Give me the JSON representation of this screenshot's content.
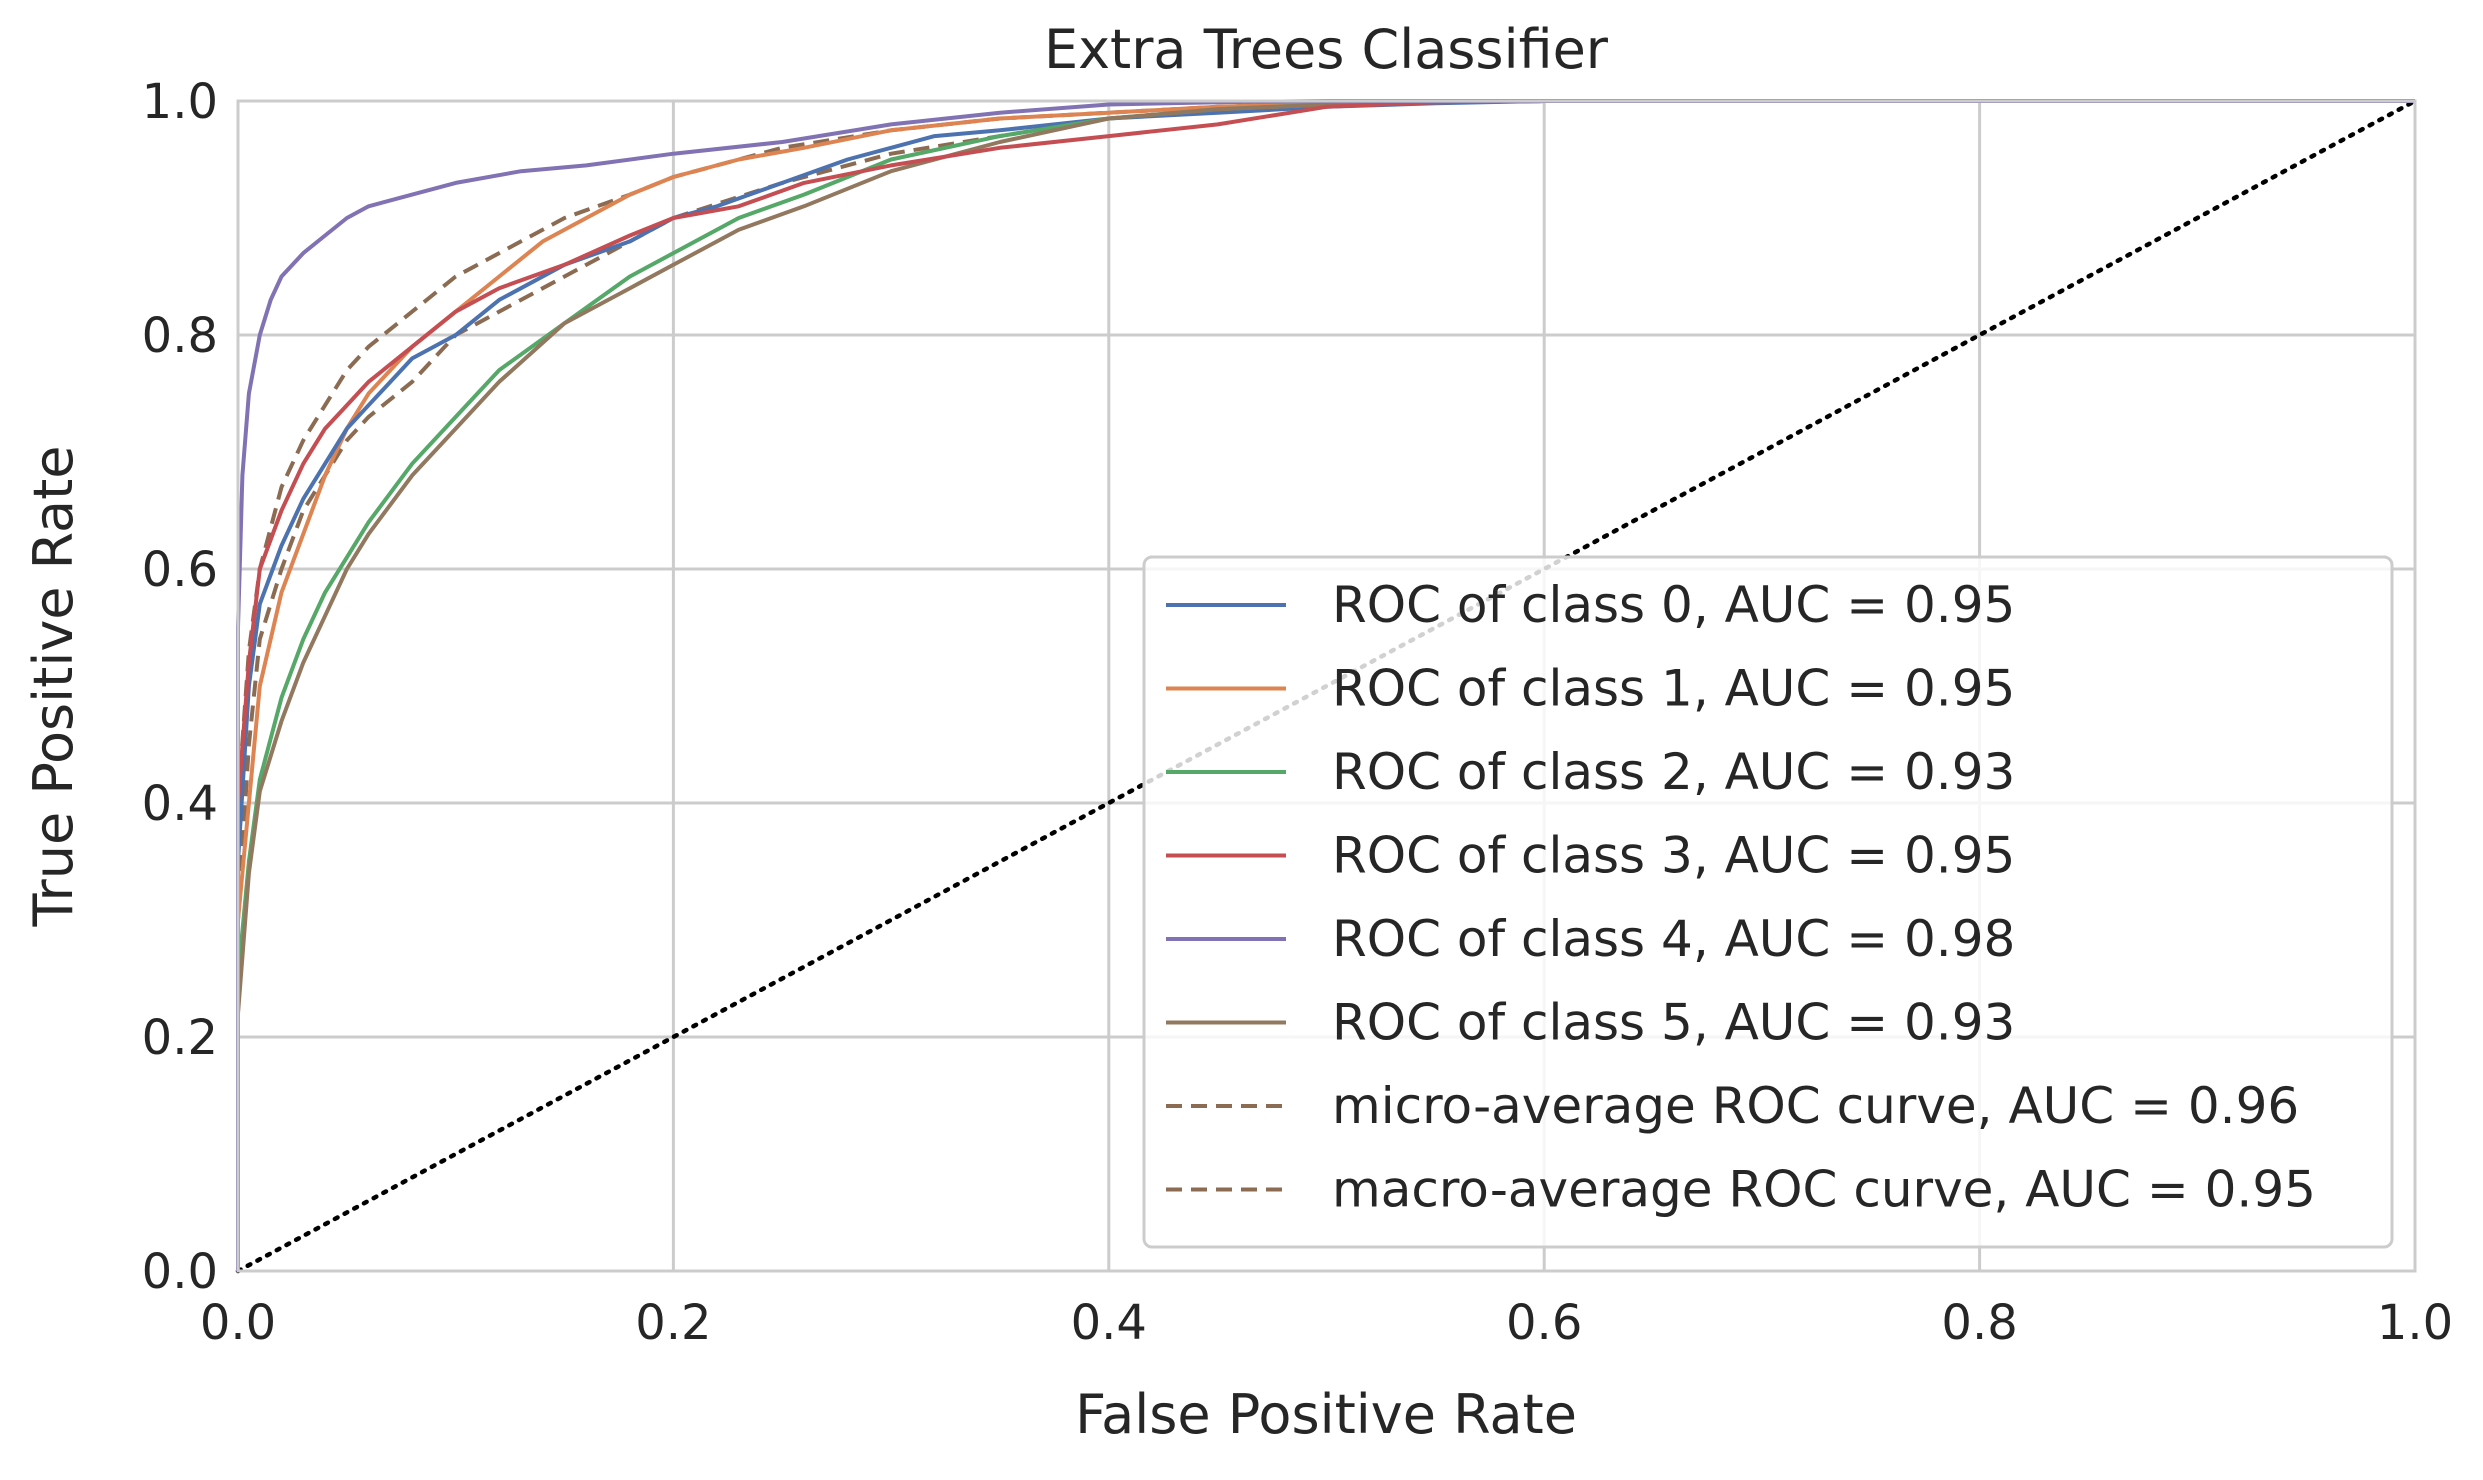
{
  "chart_data": {
    "type": "line",
    "title": "Extra Trees Classifier",
    "xlabel": "False Positive Rate",
    "ylabel": "True Positive Rate",
    "xlim": [
      0.0,
      1.0
    ],
    "ylim": [
      0.0,
      1.0
    ],
    "xticks": [
      "0.0",
      "0.2",
      "0.4",
      "0.6",
      "0.8",
      "1.0"
    ],
    "yticks": [
      "0.0",
      "0.2",
      "0.4",
      "0.6",
      "0.8",
      "1.0"
    ],
    "grid": true,
    "legend_position": "lower right",
    "series": [
      {
        "name": "ROC of class 0, AUC = 0.95",
        "color": "#4c72b0",
        "style": "solid",
        "x": [
          0,
          0,
          0.005,
          0.01,
          0.02,
          0.03,
          0.04,
          0.05,
          0.06,
          0.08,
          0.1,
          0.12,
          0.15,
          0.18,
          0.2,
          0.22,
          0.25,
          0.28,
          0.3,
          0.32,
          0.35,
          0.4,
          0.45,
          0.5,
          0.55,
          0.6,
          1.0
        ],
        "y": [
          0,
          0.35,
          0.5,
          0.57,
          0.62,
          0.66,
          0.69,
          0.72,
          0.74,
          0.78,
          0.8,
          0.83,
          0.86,
          0.88,
          0.9,
          0.91,
          0.93,
          0.95,
          0.96,
          0.97,
          0.975,
          0.985,
          0.99,
          0.995,
          0.998,
          1.0,
          1.0
        ]
      },
      {
        "name": "ROC of class 1, AUC = 0.95",
        "color": "#dd8452",
        "style": "solid",
        "x": [
          0,
          0,
          0.005,
          0.01,
          0.02,
          0.03,
          0.04,
          0.05,
          0.06,
          0.08,
          0.1,
          0.12,
          0.14,
          0.16,
          0.18,
          0.2,
          0.23,
          0.26,
          0.3,
          0.35,
          0.4,
          0.45,
          0.5,
          0.55,
          0.6,
          1.0
        ],
        "y": [
          0,
          0.3,
          0.4,
          0.5,
          0.58,
          0.63,
          0.68,
          0.72,
          0.75,
          0.79,
          0.82,
          0.85,
          0.88,
          0.9,
          0.92,
          0.935,
          0.95,
          0.96,
          0.975,
          0.985,
          0.99,
          0.995,
          0.998,
          0.999,
          1.0,
          1.0
        ]
      },
      {
        "name": "ROC of class 2, AUC = 0.93",
        "color": "#55a868",
        "style": "solid",
        "x": [
          0,
          0,
          0.005,
          0.01,
          0.02,
          0.03,
          0.04,
          0.05,
          0.06,
          0.08,
          0.1,
          0.12,
          0.15,
          0.18,
          0.2,
          0.23,
          0.26,
          0.3,
          0.35,
          0.4,
          0.45,
          0.5,
          0.55,
          0.6,
          1.0
        ],
        "y": [
          0,
          0.25,
          0.35,
          0.42,
          0.49,
          0.54,
          0.58,
          0.61,
          0.64,
          0.69,
          0.73,
          0.77,
          0.81,
          0.85,
          0.87,
          0.9,
          0.92,
          0.95,
          0.97,
          0.985,
          0.993,
          0.997,
          0.999,
          1.0,
          1.0
        ]
      },
      {
        "name": "ROC of class 3, AUC = 0.95",
        "color": "#c44e52",
        "style": "solid",
        "x": [
          0,
          0,
          0.005,
          0.01,
          0.02,
          0.03,
          0.04,
          0.05,
          0.06,
          0.08,
          0.1,
          0.12,
          0.15,
          0.18,
          0.2,
          0.23,
          0.26,
          0.3,
          0.35,
          0.4,
          0.45,
          0.5,
          0.55,
          0.6,
          1.0
        ],
        "y": [
          0,
          0.4,
          0.52,
          0.6,
          0.65,
          0.69,
          0.72,
          0.74,
          0.76,
          0.79,
          0.82,
          0.84,
          0.86,
          0.885,
          0.9,
          0.91,
          0.93,
          0.945,
          0.96,
          0.97,
          0.98,
          0.995,
          0.999,
          1.0,
          1.0
        ]
      },
      {
        "name": "ROC of class 4, AUC = 0.98",
        "color": "#8172b3",
        "style": "solid",
        "x": [
          0,
          0,
          0.002,
          0.005,
          0.01,
          0.015,
          0.02,
          0.03,
          0.04,
          0.05,
          0.06,
          0.08,
          0.1,
          0.13,
          0.16,
          0.2,
          0.25,
          0.3,
          0.35,
          0.4,
          0.45,
          0.5,
          1.0
        ],
        "y": [
          0,
          0.55,
          0.68,
          0.75,
          0.8,
          0.83,
          0.85,
          0.87,
          0.885,
          0.9,
          0.91,
          0.92,
          0.93,
          0.94,
          0.945,
          0.955,
          0.965,
          0.98,
          0.99,
          0.997,
          0.999,
          1.0,
          1.0
        ]
      },
      {
        "name": "ROC of class 5, AUC = 0.93",
        "color": "#937860",
        "style": "solid",
        "x": [
          0,
          0,
          0.005,
          0.01,
          0.02,
          0.03,
          0.04,
          0.05,
          0.06,
          0.08,
          0.1,
          0.12,
          0.15,
          0.18,
          0.2,
          0.23,
          0.26,
          0.3,
          0.35,
          0.4,
          0.45,
          0.5,
          0.55,
          0.6,
          1.0
        ],
        "y": [
          0,
          0.22,
          0.34,
          0.41,
          0.47,
          0.52,
          0.56,
          0.6,
          0.63,
          0.68,
          0.72,
          0.76,
          0.81,
          0.84,
          0.86,
          0.89,
          0.91,
          0.94,
          0.965,
          0.985,
          0.993,
          0.997,
          0.999,
          1.0,
          1.0
        ]
      },
      {
        "name": "micro-average ROC curve, AUC = 0.96",
        "color": "#8c6b53",
        "style": "dashed",
        "x": [
          0,
          0,
          0.005,
          0.01,
          0.02,
          0.03,
          0.04,
          0.05,
          0.06,
          0.08,
          0.1,
          0.12,
          0.15,
          0.18,
          0.2,
          0.25,
          0.3,
          0.35,
          0.4,
          0.45,
          0.5,
          0.55,
          0.6,
          1.0
        ],
        "y": [
          0,
          0.4,
          0.53,
          0.6,
          0.67,
          0.71,
          0.74,
          0.77,
          0.79,
          0.82,
          0.85,
          0.87,
          0.9,
          0.92,
          0.935,
          0.96,
          0.975,
          0.985,
          0.99,
          0.995,
          0.998,
          0.999,
          1.0,
          1.0
        ]
      },
      {
        "name": "macro-average ROC curve, AUC = 0.95",
        "color": "#8c6b53",
        "style": "dashed",
        "x": [
          0,
          0,
          0.005,
          0.01,
          0.02,
          0.03,
          0.04,
          0.05,
          0.06,
          0.08,
          0.1,
          0.12,
          0.15,
          0.18,
          0.2,
          0.25,
          0.3,
          0.35,
          0.4,
          0.45,
          0.5,
          0.55,
          0.6,
          1.0
        ],
        "y": [
          0,
          0.3,
          0.45,
          0.54,
          0.6,
          0.65,
          0.68,
          0.71,
          0.73,
          0.76,
          0.8,
          0.82,
          0.85,
          0.88,
          0.9,
          0.93,
          0.955,
          0.97,
          0.985,
          0.993,
          0.997,
          0.999,
          1.0,
          1.0
        ]
      },
      {
        "name": "",
        "color": "#000000",
        "style": "dotted",
        "x": [
          0,
          1.0
        ],
        "y": [
          0,
          1.0
        ]
      }
    ]
  }
}
